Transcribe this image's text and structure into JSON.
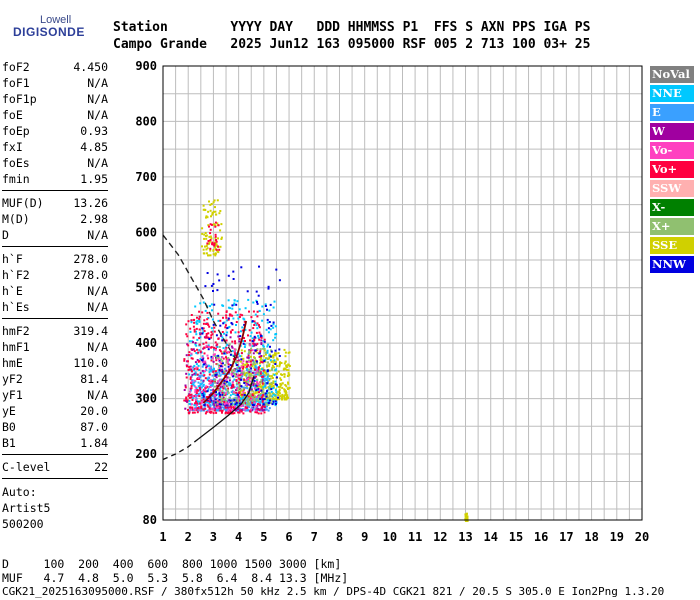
{
  "logo": {
    "top": "Lowell",
    "main": "DIGISONDE"
  },
  "header": {
    "line1": "Station        YYYY DAY   DDD HHMMSS P1  FFS S AXN PPS IGA PS",
    "line2": "Campo Grande   2025 Jun12 163 095000 RSF 005 2 713 100 03+ 25"
  },
  "params": [
    {
      "k": "foF2",
      "v": "4.450"
    },
    {
      "k": "foF1",
      "v": "N/A"
    },
    {
      "k": "foF1p",
      "v": "N/A"
    },
    {
      "k": "foE",
      "v": "N/A"
    },
    {
      "k": "foEp",
      "v": "0.93"
    },
    {
      "k": "fxI",
      "v": "4.85"
    },
    {
      "k": "foEs",
      "v": "N/A"
    },
    {
      "k": "fmin",
      "v": "1.95"
    },
    {
      "k": "MUF(D)",
      "v": "13.26"
    },
    {
      "k": "M(D)",
      "v": "2.98"
    },
    {
      "k": "D",
      "v": "N/A"
    },
    {
      "k": "h`F",
      "v": "278.0"
    },
    {
      "k": "h`F2",
      "v": "278.0"
    },
    {
      "k": "h`E",
      "v": "N/A"
    },
    {
      "k": "h`Es",
      "v": "N/A"
    },
    {
      "k": "hmF2",
      "v": "319.4"
    },
    {
      "k": "hmF1",
      "v": "N/A"
    },
    {
      "k": "hmE",
      "v": "110.0"
    },
    {
      "k": "yF2",
      "v": "81.4"
    },
    {
      "k": "yF1",
      "v": "N/A"
    },
    {
      "k": "yE",
      "v": "20.0"
    },
    {
      "k": "B0",
      "v": "87.0"
    },
    {
      "k": "B1",
      "v": "1.84"
    },
    {
      "k": "C-level",
      "v": "22"
    }
  ],
  "auto": {
    "line1": "Auto:",
    "line2": "Artist5",
    "line3": "500200"
  },
  "legend": [
    {
      "label": "NoVal",
      "color": "#808080"
    },
    {
      "label": "NNE",
      "color": "#00c8ff"
    },
    {
      "label": "E",
      "color": "#3aa0ff"
    },
    {
      "label": "W",
      "color": "#a000a0"
    },
    {
      "label": "Vo-",
      "color": "#ff40c0"
    },
    {
      "label": "Vo+",
      "color": "#ff0040"
    },
    {
      "label": "SSW",
      "color": "#ffb0b0"
    },
    {
      "label": "X-",
      "color": "#008000"
    },
    {
      "label": "X+",
      "color": "#90c070"
    },
    {
      "label": "SSE",
      "color": "#d0d000"
    },
    {
      "label": "NNW",
      "color": "#0000e0"
    }
  ],
  "muf_table": {
    "d_line": "D     100  200  400  600  800 1000 1500 3000 [km]",
    "muf_line": "MUF   4.7  4.8  5.0  5.3  5.8  6.4  8.4 13.3 [MHz]"
  },
  "footer": "CGK21_2025163095000.RSF / 380fx512h 50 kHz 2.5 km / DPS-4D CGK21 821 / 20.5 S 305.0 E Ion2Png 1.3.20",
  "chart_data": {
    "type": "scatter",
    "xlim": [
      1,
      20
    ],
    "ylim": [
      80,
      900
    ],
    "x_ticks": [
      1,
      2,
      3,
      4,
      5,
      6,
      7,
      8,
      9,
      10,
      11,
      12,
      13,
      14,
      15,
      16,
      17,
      18,
      19,
      20
    ],
    "y_ticks": [
      80,
      200,
      300,
      400,
      500,
      600,
      700,
      800,
      900
    ],
    "grid": true,
    "legend_position": "right",
    "profile_dashed_upper": [
      [
        1.0,
        595
      ],
      [
        1.6,
        560
      ],
      [
        2.1,
        520
      ],
      [
        2.6,
        480
      ],
      [
        3.0,
        440
      ],
      [
        3.5,
        400
      ],
      [
        3.9,
        370
      ]
    ],
    "profile_solid": [
      [
        2.6,
        292
      ],
      [
        3.0,
        310
      ],
      [
        3.4,
        335
      ],
      [
        3.7,
        355
      ],
      [
        3.95,
        380
      ],
      [
        4.15,
        410
      ],
      [
        4.3,
        440
      ]
    ],
    "profile_lower_solid": [
      [
        2.4,
        227
      ],
      [
        3.0,
        248
      ],
      [
        3.6,
        270
      ],
      [
        4.1,
        290
      ],
      [
        4.4,
        310
      ],
      [
        4.6,
        340
      ]
    ],
    "profile_lower_dashed": [
      [
        1.0,
        190
      ],
      [
        1.5,
        200
      ],
      [
        2.0,
        213
      ],
      [
        2.4,
        227
      ]
    ],
    "clusters": [
      {
        "name": "SSE",
        "color": "#d0d000",
        "x": [
          2.5,
          3.3
        ],
        "y": [
          560,
          660
        ],
        "n": 90
      },
      {
        "name": "Vo+",
        "color": "#ff0040",
        "x": [
          2.7,
          3.2
        ],
        "y": [
          570,
          620
        ],
        "n": 25
      },
      {
        "name": "SSE",
        "color": "#d0d000",
        "x": [
          4.0,
          6.0
        ],
        "y": [
          300,
          390
        ],
        "n": 380
      },
      {
        "name": "E",
        "color": "#3aa0ff",
        "x": [
          2.0,
          5.2
        ],
        "y": [
          280,
          360
        ],
        "n": 420
      },
      {
        "name": "NNE",
        "color": "#00c8ff",
        "x": [
          2.0,
          5.5
        ],
        "y": [
          290,
          480
        ],
        "n": 320
      },
      {
        "name": "W",
        "color": "#a000a0",
        "x": [
          1.8,
          5.0
        ],
        "y": [
          280,
          420
        ],
        "n": 180
      },
      {
        "name": "Vo+",
        "color": "#ff0040",
        "x": [
          1.8,
          5.0
        ],
        "y": [
          275,
          460
        ],
        "n": 420
      },
      {
        "name": "X+",
        "color": "#90c070",
        "x": [
          3.0,
          5.3
        ],
        "y": [
          290,
          400
        ],
        "n": 180
      },
      {
        "name": "NNW",
        "color": "#0000e0",
        "x": [
          2.5,
          5.6
        ],
        "y": [
          290,
          540
        ],
        "n": 160
      },
      {
        "name": "Vo-",
        "color": "#ff40c0",
        "x": [
          2.0,
          4.8
        ],
        "y": [
          280,
          400
        ],
        "n": 120
      },
      {
        "name": "SSE",
        "color": "#d0d000",
        "x": [
          12.95,
          13.05
        ],
        "y": [
          80,
          95
        ],
        "n": 25
      }
    ]
  }
}
